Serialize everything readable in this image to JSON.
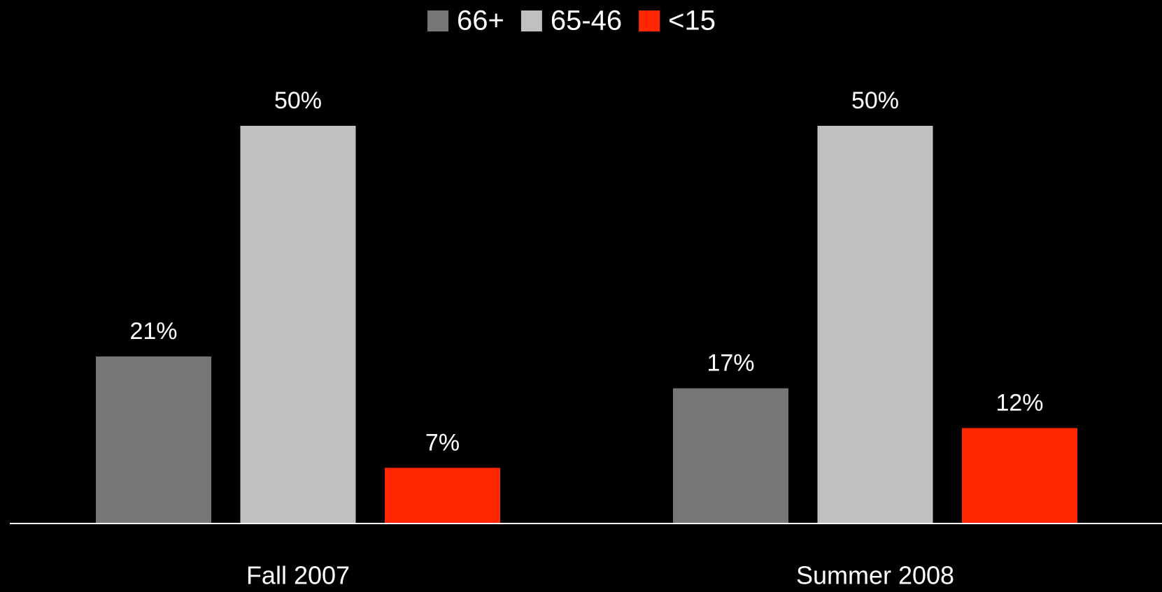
{
  "chart_data": {
    "type": "bar",
    "categories": [
      "Fall 2007",
      "Summer 2008"
    ],
    "series": [
      {
        "name": "66+",
        "color": "#767676",
        "values": [
          21,
          17
        ],
        "value_labels": [
          "21%",
          "17%"
        ]
      },
      {
        "name": "65-46",
        "color": "#c0c0c0",
        "values": [
          50,
          50
        ],
        "value_labels": [
          "50%",
          "50%"
        ]
      },
      {
        "name": "<15",
        "color": "#ff2600",
        "values": [
          7,
          12
        ],
        "value_labels": [
          "7%",
          "12%"
        ]
      }
    ],
    "ylim": [
      0,
      50
    ],
    "legend": "top"
  }
}
